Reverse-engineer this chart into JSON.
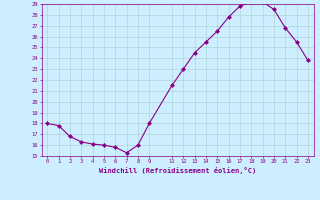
{
  "x": [
    0,
    1,
    2,
    3,
    4,
    5,
    6,
    7,
    8,
    9,
    11,
    12,
    13,
    14,
    15,
    16,
    17,
    18,
    19,
    20,
    21,
    22,
    23
  ],
  "y": [
    18.0,
    17.8,
    16.8,
    16.3,
    16.1,
    16.0,
    15.8,
    15.3,
    16.0,
    18.0,
    21.5,
    23.0,
    24.5,
    25.5,
    26.5,
    27.8,
    28.8,
    29.2,
    29.2,
    28.5,
    26.8,
    25.5,
    23.8
  ],
  "xlabel": "Windchill (Refroidissement éolien,°C)",
  "ylim": [
    15,
    29
  ],
  "xlim": [
    -0.5,
    23.5
  ],
  "yticks": [
    15,
    16,
    17,
    18,
    19,
    20,
    21,
    22,
    23,
    24,
    25,
    26,
    27,
    28,
    29
  ],
  "xticks": [
    0,
    1,
    2,
    3,
    4,
    5,
    6,
    7,
    8,
    9,
    11,
    12,
    13,
    14,
    15,
    16,
    17,
    18,
    19,
    20,
    21,
    22,
    23
  ],
  "line_color": "#880088",
  "marker_color": "#880088",
  "bg_color": "#cceeff",
  "grid_color": "#aacccc",
  "axis_label_color": "#880088",
  "tick_color": "#880088",
  "spine_color": "#880088"
}
